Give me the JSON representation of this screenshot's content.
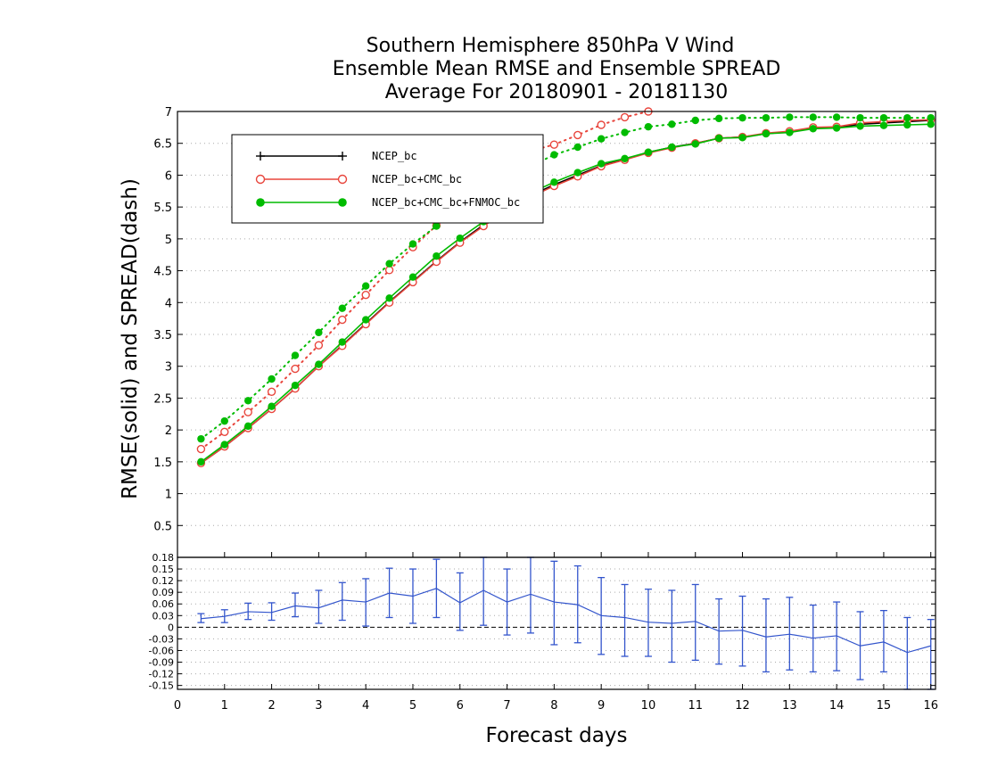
{
  "chart_data": [
    {
      "type": "line",
      "title": [
        "Southern Hemisphere 850hPa V Wind",
        "Ensemble Mean RMSE and Ensemble SPREAD",
        "Average For 20180901 - 20181130"
      ],
      "ylabel": "RMSE(solid)  and  SPREAD(dash)",
      "xlim": [
        0,
        16.1
      ],
      "ylim": [
        0,
        7
      ],
      "yticks": [
        0.5,
        1,
        1.5,
        2,
        2.5,
        3,
        3.5,
        4,
        4.5,
        5,
        5.5,
        6,
        6.5,
        7
      ],
      "ytick_labels": [
        "0.5",
        "1",
        "1.5",
        "2",
        "2.5",
        "3",
        "3.5",
        "4",
        "4.5",
        "5",
        "5.5",
        "6",
        "6.5",
        "7"
      ],
      "grid": true,
      "legend_position": "top-left",
      "x": [
        0.5,
        1,
        1.5,
        2,
        2.5,
        3,
        3.5,
        4,
        4.5,
        5,
        5.5,
        6,
        6.5,
        7,
        7.5,
        8,
        8.5,
        9,
        9.5,
        10,
        10.5,
        11,
        11.5,
        12,
        12.5,
        13,
        13.5,
        14,
        14.5,
        15,
        15.5,
        16
      ],
      "series": [
        {
          "name": "NCEP_bc",
          "style": "solid",
          "color": "#000000",
          "marker": "plus",
          "values": [
            1.48,
            1.74,
            2.03,
            2.33,
            2.65,
            3.0,
            3.33,
            3.67,
            4.01,
            4.33,
            4.65,
            4.95,
            5.22,
            5.47,
            5.68,
            5.85,
            6.0,
            6.15,
            6.25,
            6.36,
            6.44,
            6.5,
            6.58,
            6.6,
            6.65,
            6.68,
            6.74,
            6.75,
            6.8,
            6.82,
            6.84,
            6.86
          ]
        },
        {
          "name": "NCEP_bc+CMC_bc",
          "style": "solid",
          "color": "#e8453c",
          "marker": "open-circle",
          "values": [
            1.48,
            1.74,
            2.03,
            2.33,
            2.65,
            3.0,
            3.32,
            3.66,
            4.0,
            4.32,
            4.64,
            4.94,
            5.2,
            5.45,
            5.66,
            5.83,
            5.98,
            6.14,
            6.24,
            6.35,
            6.43,
            6.5,
            6.58,
            6.6,
            6.66,
            6.69,
            6.75,
            6.76,
            6.82,
            6.84,
            6.86,
            6.87
          ]
        },
        {
          "name": "NCEP_bc+CMC_bc+FNMOC_bc",
          "style": "solid",
          "color": "#00bb00",
          "marker": "filled-circle",
          "values": [
            1.5,
            1.77,
            2.06,
            2.37,
            2.7,
            3.03,
            3.38,
            3.73,
            4.07,
            4.4,
            4.73,
            5.01,
            5.27,
            5.51,
            5.72,
            5.89,
            6.04,
            6.18,
            6.26,
            6.36,
            6.44,
            6.49,
            6.58,
            6.59,
            6.65,
            6.67,
            6.73,
            6.74,
            6.77,
            6.78,
            6.79,
            6.8
          ]
        },
        {
          "name": "",
          "style": "dotted",
          "color": "#e8453c",
          "marker": "open-circle",
          "values": [
            1.7,
            1.97,
            2.28,
            2.6,
            2.96,
            3.33,
            3.73,
            4.12,
            4.51,
            4.87,
            5.21,
            5.55,
            5.86,
            6.15,
            6.38,
            6.48,
            6.63,
            6.79,
            6.91,
            7.0,
            null,
            null,
            null,
            null,
            null,
            null,
            null,
            null,
            null,
            null,
            null,
            null
          ]
        },
        {
          "name": "",
          "style": "dotted",
          "color": "#00bb00",
          "marker": "filled-circle",
          "values": [
            1.86,
            2.14,
            2.46,
            2.8,
            3.17,
            3.53,
            3.91,
            4.26,
            4.61,
            4.92,
            5.2,
            5.48,
            5.73,
            5.95,
            6.14,
            6.32,
            6.44,
            6.57,
            6.67,
            6.76,
            6.8,
            6.86,
            6.89,
            6.9,
            6.9,
            6.91,
            6.91,
            6.91,
            6.9,
            6.9,
            6.9,
            6.9
          ]
        }
      ]
    },
    {
      "type": "line",
      "xlabel": "Forecast days",
      "xlim": [
        0,
        16.1
      ],
      "ylim": [
        -0.16,
        0.18
      ],
      "xticks": [
        0,
        1,
        2,
        3,
        4,
        5,
        6,
        7,
        8,
        9,
        10,
        11,
        12,
        13,
        14,
        15,
        16
      ],
      "xtick_labels": [
        "0",
        "1",
        "2",
        "3",
        "4",
        "5",
        "6",
        "7",
        "8",
        "9",
        "10",
        "11",
        "12",
        "13",
        "14",
        "15",
        "16"
      ],
      "yticks": [
        0.18,
        0.15,
        0.12,
        0.09,
        0.06,
        0.03,
        0,
        -0.03,
        -0.06,
        -0.09,
        -0.12,
        -0.15
      ],
      "ytick_labels": [
        "0.18",
        "0.15",
        "0.12",
        "0.09",
        "0.06",
        "0.03",
        "0",
        "-0.03",
        "-0.06",
        "-0.09",
        "-0.12",
        "-0.15"
      ],
      "grid": true,
      "x": [
        0.5,
        1,
        1.5,
        2,
        2.5,
        3,
        3.5,
        4,
        4.5,
        5,
        5.5,
        6,
        6.5,
        7,
        7.5,
        8,
        8.5,
        9,
        9.5,
        10,
        10.5,
        11,
        11.5,
        12,
        12.5,
        13,
        13.5,
        14,
        14.5,
        15,
        15.5,
        16
      ],
      "series": [
        {
          "name": "",
          "color": "#3355cc",
          "values": [
            0.022,
            0.028,
            0.04,
            0.038,
            0.055,
            0.05,
            0.07,
            0.065,
            0.088,
            0.08,
            0.1,
            0.063,
            0.095,
            0.065,
            0.085,
            0.065,
            0.058,
            0.03,
            0.025,
            0.013,
            0.01,
            0.015,
            -0.01,
            -0.008,
            -0.025,
            -0.018,
            -0.028,
            -0.022,
            -0.048,
            -0.038,
            -0.065,
            -0.048
          ],
          "error_low": [
            0.012,
            0.012,
            0.02,
            0.018,
            0.027,
            0.01,
            0.018,
            0.003,
            0.025,
            0.01,
            0.025,
            -0.008,
            0.005,
            -0.02,
            -0.015,
            -0.045,
            -0.04,
            -0.07,
            -0.075,
            -0.075,
            -0.09,
            -0.085,
            -0.095,
            -0.1,
            -0.115,
            -0.11,
            -0.115,
            -0.112,
            -0.135,
            -0.115,
            -0.16,
            -0.16
          ],
          "error_high": [
            0.035,
            0.045,
            0.062,
            0.063,
            0.088,
            0.095,
            0.115,
            0.125,
            0.152,
            0.15,
            0.175,
            0.14,
            0.18,
            0.15,
            0.18,
            0.17,
            0.158,
            0.128,
            0.11,
            0.098,
            0.095,
            0.11,
            0.073,
            0.08,
            0.073,
            0.077,
            0.057,
            0.065,
            0.04,
            0.043,
            0.025,
            0.02
          ]
        }
      ]
    }
  ]
}
